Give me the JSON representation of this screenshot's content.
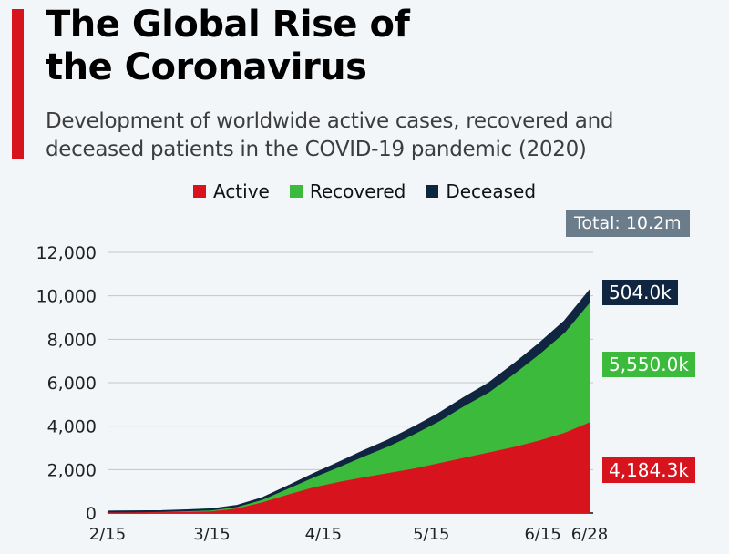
{
  "header": {
    "title_line1": "The Global Rise of",
    "title_line2": "the Coronavirus",
    "subtitle_line1": "Development of worldwide active cases, recovered and",
    "subtitle_line2": "deceased patients in the COVID-19 pandemic (2020)"
  },
  "colors": {
    "accent": "#d7141e",
    "active": "#d7141e",
    "recovered": "#3bba3b",
    "deceased": "#0f2540",
    "total_badge": "#6b7d8a",
    "grid": "#c2c6ca"
  },
  "legend": [
    {
      "label": "Active",
      "color": "#d7141e"
    },
    {
      "label": "Recovered",
      "color": "#3bba3b"
    },
    {
      "label": "Deceased",
      "color": "#0f2540"
    }
  ],
  "total_badge": "Total: 10.2m",
  "end_labels": {
    "deceased": "504.0k",
    "recovered": "5,550.0k",
    "active": "4,184.3k"
  },
  "chart_data": {
    "type": "area",
    "stacked": true,
    "title": "The Global Rise of the Coronavirus",
    "subtitle": "Development of worldwide active cases, recovered and deceased patients in the COVID-19 pandemic (2020)",
    "xlabel": "",
    "ylabel": "",
    "y_unit": "thousands",
    "ylim": [
      0,
      12000
    ],
    "yticks": [
      0,
      2000,
      4000,
      6000,
      8000,
      10000,
      12000
    ],
    "ytick_labels": [
      "0",
      "2,000",
      "4,000",
      "6,000",
      "8,000",
      "10,000",
      "12,000"
    ],
    "xticks": [
      "2/15",
      "3/15",
      "4/15",
      "5/15",
      "6/15",
      "6/28"
    ],
    "grid": true,
    "legend_position": "top-center",
    "x": [
      "2/15",
      "2/22",
      "3/1",
      "3/8",
      "3/15",
      "3/22",
      "3/29",
      "4/5",
      "4/12",
      "4/19",
      "4/26",
      "5/3",
      "5/10",
      "5/17",
      "5/24",
      "5/31",
      "6/7",
      "6/14",
      "6/21",
      "6/28"
    ],
    "series": [
      {
        "name": "Active",
        "values": [
          55,
          55,
          45,
          60,
          90,
          220,
          500,
          850,
          1180,
          1430,
          1650,
          1850,
          2050,
          2300,
          2550,
          2800,
          3050,
          3350,
          3700,
          4184
        ]
      },
      {
        "name": "Recovered",
        "values": [
          12,
          22,
          42,
          60,
          75,
          95,
          150,
          300,
          480,
          700,
          980,
          1250,
          1600,
          1950,
          2400,
          2800,
          3400,
          4000,
          4650,
          5550
        ]
      },
      {
        "name": "Deceased",
        "values": [
          1,
          2,
          3,
          4,
          6,
          15,
          35,
          70,
          120,
          170,
          210,
          245,
          285,
          315,
          345,
          375,
          405,
          440,
          475,
          504
        ]
      }
    ]
  }
}
